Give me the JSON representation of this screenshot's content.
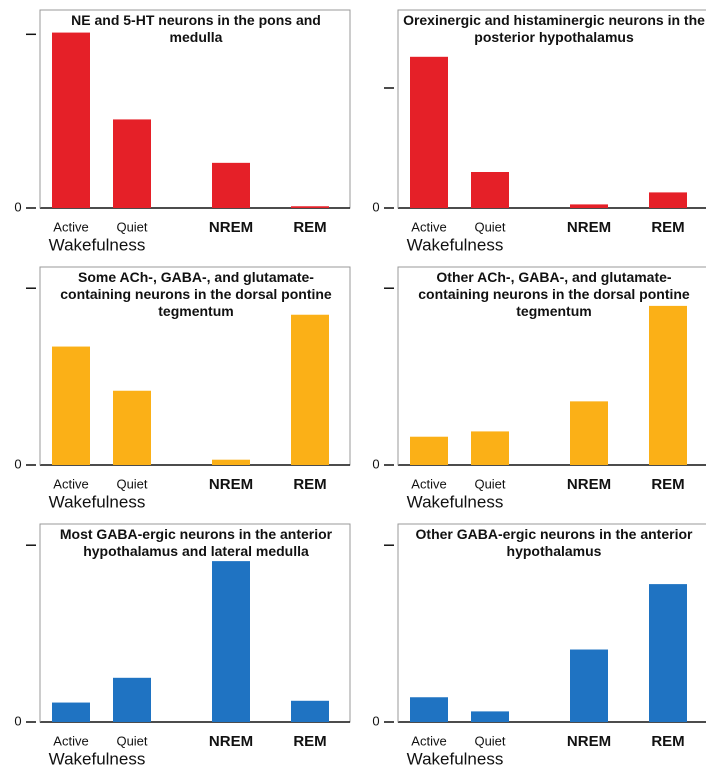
{
  "chart_data": [
    {
      "type": "bar",
      "title": "NE and 5-HT neurons in the pons and medulla",
      "categories": [
        "Active",
        "Quiet",
        "NREM",
        "REM"
      ],
      "values": [
        1.01,
        0.51,
        0.26,
        0.01
      ],
      "color": "#e52028",
      "ylim": [
        0,
        1.14
      ],
      "yticks": [
        0
      ],
      "unlabeled_yticks": [
        1
      ],
      "group_label": "Wakefulness"
    },
    {
      "type": "bar",
      "title": "Orexinergic and histaminergic neurons in the posterior hypothalamus",
      "categories": [
        "Active",
        "Quiet",
        "NREM",
        "REM"
      ],
      "values": [
        1.26,
        0.3,
        0.03,
        0.13
      ],
      "color": "#e52028",
      "ylim": [
        0,
        1.65
      ],
      "yticks": [
        0
      ],
      "unlabeled_yticks": [
        1
      ],
      "group_label": "Wakefulness"
    },
    {
      "type": "bar",
      "title": "Some ACh-, GABA-, and glutamate-containing neurons in the dorsal pontine tegmentum",
      "categories": [
        "Active",
        "Quiet",
        "NREM",
        "REM"
      ],
      "values": [
        0.67,
        0.42,
        0.03,
        0.85
      ],
      "color": "#fbb017",
      "ylim": [
        0,
        1.12
      ],
      "yticks": [
        0
      ],
      "unlabeled_yticks": [
        1
      ],
      "group_label": "Wakefulness"
    },
    {
      "type": "bar",
      "title": "Other ACh-, GABA-, and glutamate-containing neurons in the dorsal pontine tegmentum",
      "categories": [
        "Active",
        "Quiet",
        "NREM",
        "REM"
      ],
      "values": [
        0.16,
        0.19,
        0.36,
        0.9
      ],
      "color": "#fbb017",
      "ylim": [
        0,
        1.12
      ],
      "yticks": [
        0
      ],
      "unlabeled_yticks": [
        1
      ],
      "group_label": "Wakefulness"
    },
    {
      "type": "bar",
      "title": "Most GABA-ergic neurons in the anterior hypothalamus and lateral medulla",
      "categories": [
        "Active",
        "Quiet",
        "NREM",
        "REM"
      ],
      "values": [
        0.11,
        0.25,
        0.91,
        0.12
      ],
      "color": "#1f73c2",
      "ylim": [
        0,
        1.12
      ],
      "yticks": [
        0
      ],
      "unlabeled_yticks": [
        1
      ],
      "group_label": "Wakefulness"
    },
    {
      "type": "bar",
      "title": "Other GABA-ergic neurons in the anterior hypothalamus",
      "categories": [
        "Active",
        "Quiet",
        "NREM",
        "REM"
      ],
      "values": [
        0.14,
        0.06,
        0.41,
        0.78
      ],
      "color": "#1f73c2",
      "ylim": [
        0,
        1.12
      ],
      "yticks": [
        0
      ],
      "unlabeled_yticks": [
        1
      ],
      "group_label": "Wakefulness"
    }
  ]
}
